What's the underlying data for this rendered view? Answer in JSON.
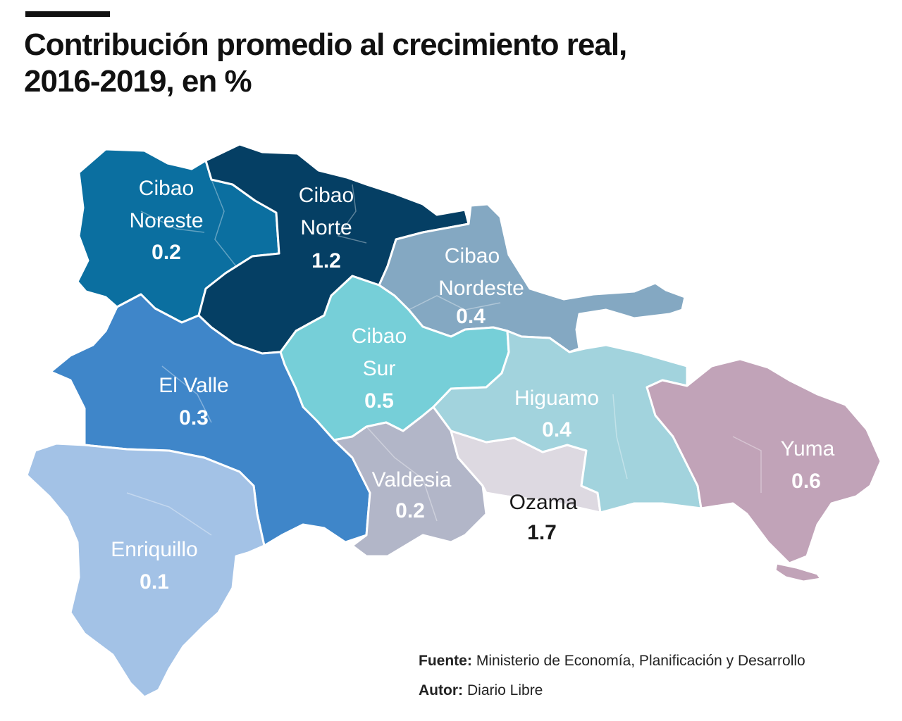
{
  "header": {
    "title_line1": "Contribución promedio al crecimiento real,",
    "title_line2": "2016-2019, en %"
  },
  "colors": {
    "cibao_noroeste": "#0b6fa0",
    "cibao_norte": "#053f64",
    "cibao_nordeste": "#84a8c2",
    "cibao_sur": "#76cfd8",
    "el_valle": "#3f86c9",
    "enriquillo": "#a3c2e6",
    "valdesia": "#b2b6c8",
    "ozama": "#ddd9e1",
    "higuamo": "#a2d3dd",
    "yuma": "#c1a3b8"
  },
  "regions": [
    {
      "id": "cibao_noroeste",
      "name_line1": "Cibao",
      "name_line2": "Noreste",
      "value": "0.2"
    },
    {
      "id": "cibao_norte",
      "name_line1": "Cibao",
      "name_line2": "Norte",
      "value": "1.2"
    },
    {
      "id": "cibao_nordeste",
      "name_line1": "Cibao",
      "name_line2": "Nordeste",
      "value": "0.4"
    },
    {
      "id": "cibao_sur",
      "name_line1": "Cibao",
      "name_line2": "Sur",
      "value": "0.5"
    },
    {
      "id": "el_valle",
      "name_line1": "El Valle",
      "value": "0.3"
    },
    {
      "id": "higuamo",
      "name_line1": "Higuamo",
      "value": "0.4"
    },
    {
      "id": "yuma",
      "name_line1": "Yuma",
      "value": "0.6"
    },
    {
      "id": "valdesia",
      "name_line1": "Valdesia",
      "value": "0.2"
    },
    {
      "id": "ozama",
      "name_line1": "Ozama",
      "value": "1.7"
    },
    {
      "id": "enriquillo",
      "name_line1": "Enriquillo",
      "value": "0.1"
    }
  ],
  "footer": {
    "source_label": "Fuente:",
    "source_text": "Ministerio de Economía, Planificación y Desarrollo",
    "author_label": "Autor:",
    "author_text": "Diario Libre"
  }
}
